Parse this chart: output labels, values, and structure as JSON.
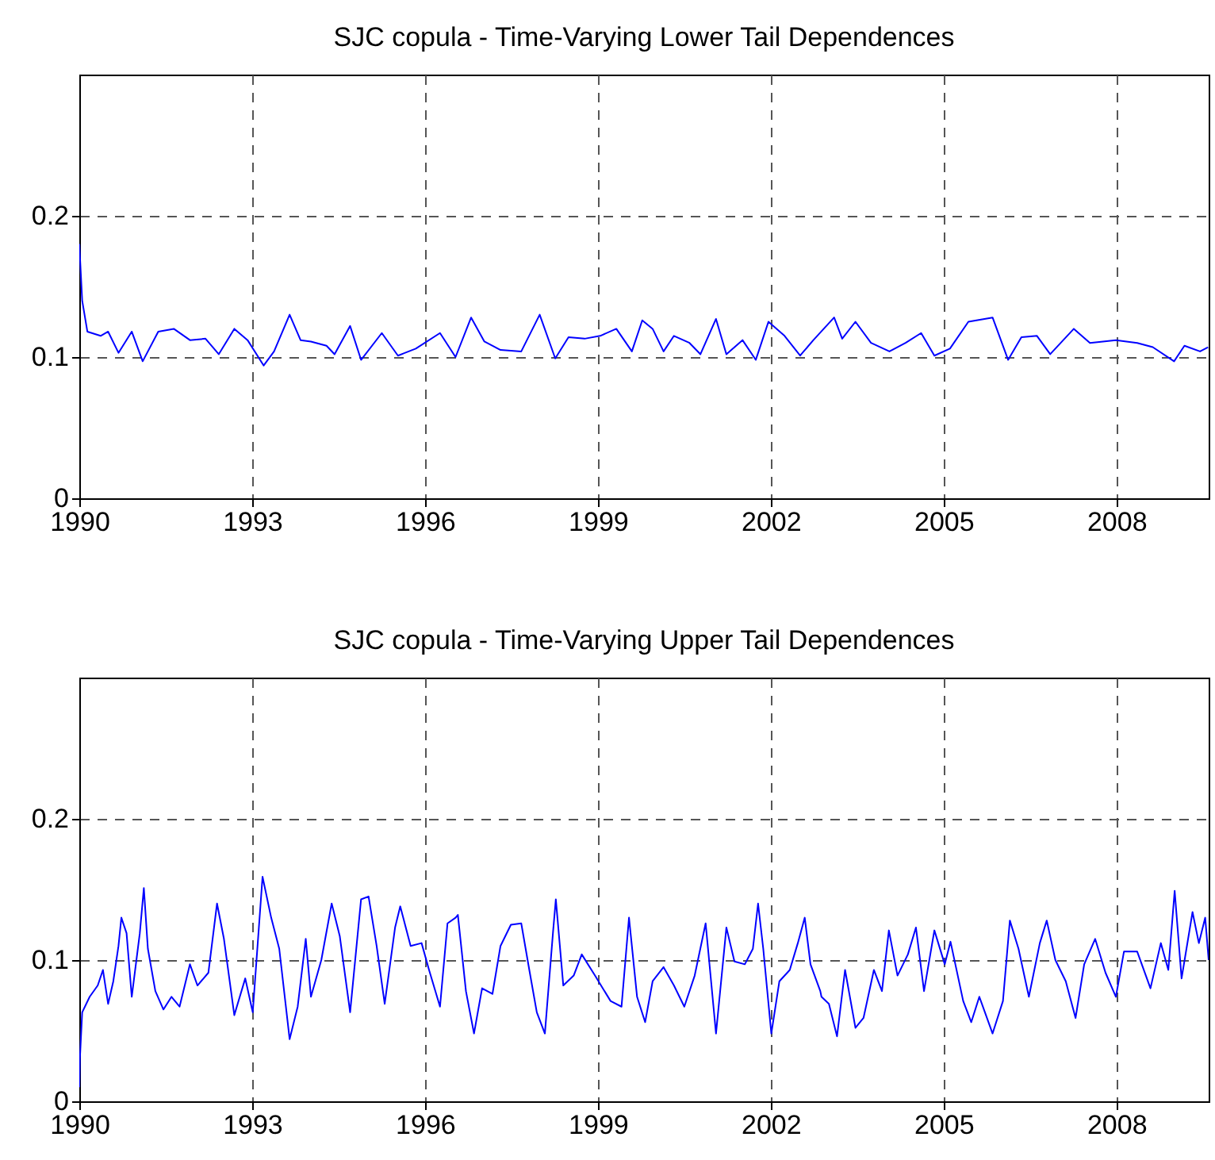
{
  "chart_data": [
    {
      "type": "line",
      "title": "SJC copula - Time-Varying Lower Tail Dependences",
      "xlim": [
        1990,
        2009.6
      ],
      "xticks": [
        1990,
        1993,
        1996,
        1999,
        2002,
        2005,
        2008
      ],
      "ylim": [
        0,
        0.3
      ],
      "yticks": [
        0,
        0.1,
        0.2
      ],
      "grid": true,
      "series": [
        {
          "color": "#0000ff",
          "x": [
            1990.0,
            1990.05,
            1990.14,
            1990.37,
            1990.5,
            1990.68,
            1990.91,
            1991.1,
            1991.37,
            1991.64,
            1991.92,
            1992.19,
            1992.42,
            1992.69,
            1992.92,
            1993.2,
            1993.38,
            1993.65,
            1993.84,
            1994.02,
            1994.29,
            1994.43,
            1994.7,
            1994.89,
            1995.25,
            1995.53,
            1995.84,
            1996.26,
            1996.53,
            1996.8,
            1997.03,
            1997.31,
            1997.67,
            1997.99,
            1998.26,
            1998.49,
            1998.77,
            1999.04,
            1999.32,
            1999.59,
            1999.77,
            1999.95,
            2000.14,
            2000.32,
            2000.59,
            2000.78,
            2001.05,
            2001.23,
            2001.51,
            2001.74,
            2001.96,
            2002.24,
            2002.51,
            2002.74,
            2003.1,
            2003.24,
            2003.47,
            2003.74,
            2004.06,
            2004.34,
            2004.61,
            2004.84,
            2005.11,
            2005.43,
            2005.85,
            2006.12,
            2006.35,
            2006.62,
            2006.85,
            2007.26,
            2007.54,
            2007.99,
            2008.36,
            2008.63,
            2009.0,
            2009.18,
            2009.45,
            2009.59
          ],
          "values": [
            0.18,
            0.14,
            0.118,
            0.115,
            0.118,
            0.103,
            0.118,
            0.097,
            0.118,
            0.12,
            0.112,
            0.113,
            0.102,
            0.12,
            0.112,
            0.094,
            0.104,
            0.13,
            0.112,
            0.111,
            0.108,
            0.102,
            0.122,
            0.098,
            0.117,
            0.101,
            0.106,
            0.117,
            0.1,
            0.128,
            0.111,
            0.105,
            0.104,
            0.13,
            0.099,
            0.114,
            0.113,
            0.115,
            0.12,
            0.104,
            0.126,
            0.12,
            0.104,
            0.115,
            0.11,
            0.102,
            0.127,
            0.102,
            0.112,
            0.098,
            0.125,
            0.115,
            0.101,
            0.112,
            0.128,
            0.113,
            0.125,
            0.11,
            0.104,
            0.11,
            0.117,
            0.101,
            0.106,
            0.125,
            0.128,
            0.098,
            0.114,
            0.115,
            0.102,
            0.12,
            0.11,
            0.112,
            0.11,
            0.107,
            0.097,
            0.108,
            0.104,
            0.107
          ]
        }
      ]
    },
    {
      "type": "line",
      "title": "SJC copula - Time-Varying Upper Tail Dependences",
      "xlim": [
        1990,
        2009.6
      ],
      "xticks": [
        1990,
        1993,
        1996,
        1999,
        2002,
        2005,
        2008
      ],
      "ylim": [
        0,
        0.3
      ],
      "yticks": [
        0,
        0.1,
        0.2
      ],
      "grid": true,
      "series": [
        {
          "color": "#0000ff",
          "x": [
            1990.0,
            1990.01,
            1990.05,
            1990.18,
            1990.32,
            1990.41,
            1990.5,
            1990.59,
            1990.68,
            1990.73,
            1990.82,
            1990.91,
            1991.05,
            1991.12,
            1991.19,
            1991.32,
            1991.46,
            1991.6,
            1991.74,
            1991.92,
            1992.05,
            1992.24,
            1992.39,
            1992.51,
            1992.69,
            1992.88,
            1993.01,
            1993.18,
            1993.33,
            1993.47,
            1993.65,
            1993.79,
            1993.93,
            1994.02,
            1994.2,
            1994.38,
            1994.52,
            1994.7,
            1994.89,
            1995.02,
            1995.16,
            1995.3,
            1995.48,
            1995.57,
            1995.75,
            1995.94,
            1996.07,
            1996.26,
            1996.39,
            1996.53,
            1996.57,
            1996.71,
            1996.85,
            1996.99,
            1997.17,
            1997.31,
            1997.49,
            1997.67,
            1997.81,
            1997.94,
            1998.08,
            1998.22,
            1998.27,
            1998.4,
            1998.58,
            1998.72,
            1998.95,
            1999.22,
            1999.41,
            1999.54,
            1999.68,
            1999.82,
            1999.95,
            2000.14,
            2000.32,
            2000.5,
            2000.68,
            2000.87,
            2001.05,
            2001.23,
            2001.37,
            2001.55,
            2001.69,
            2001.78,
            2001.87,
            2002.01,
            2002.15,
            2002.33,
            2002.47,
            2002.59,
            2002.69,
            2002.86,
            2002.88,
            2003.01,
            2003.15,
            2003.29,
            2003.47,
            2003.61,
            2003.79,
            2003.93,
            2004.05,
            2004.2,
            2004.38,
            2004.52,
            2004.66,
            2004.84,
            2005.02,
            2005.12,
            2005.34,
            2005.48,
            2005.62,
            2005.85,
            2006.03,
            2006.15,
            2006.3,
            2006.48,
            2006.67,
            2006.79,
            2006.94,
            2007.12,
            2007.29,
            2007.44,
            2007.63,
            2007.81,
            2007.99,
            2008.13,
            2008.36,
            2008.59,
            2008.77,
            2008.9,
            2009.01,
            2009.13,
            2009.32,
            2009.43,
            2009.54,
            2009.6
          ],
          "values": [
            0.01,
            0.03,
            0.063,
            0.074,
            0.082,
            0.093,
            0.069,
            0.085,
            0.11,
            0.13,
            0.119,
            0.074,
            0.119,
            0.151,
            0.108,
            0.078,
            0.065,
            0.074,
            0.067,
            0.097,
            0.082,
            0.091,
            0.14,
            0.115,
            0.061,
            0.087,
            0.063,
            0.159,
            0.13,
            0.108,
            0.044,
            0.067,
            0.115,
            0.074,
            0.1,
            0.14,
            0.117,
            0.063,
            0.143,
            0.145,
            0.11,
            0.069,
            0.123,
            0.138,
            0.11,
            0.112,
            0.093,
            0.067,
            0.126,
            0.13,
            0.132,
            0.078,
            0.048,
            0.08,
            0.076,
            0.11,
            0.125,
            0.126,
            0.093,
            0.063,
            0.048,
            0.119,
            0.143,
            0.082,
            0.089,
            0.104,
            0.089,
            0.071,
            0.067,
            0.13,
            0.074,
            0.056,
            0.085,
            0.095,
            0.082,
            0.067,
            0.089,
            0.126,
            0.048,
            0.123,
            0.099,
            0.097,
            0.108,
            0.14,
            0.108,
            0.048,
            0.085,
            0.093,
            0.112,
            0.13,
            0.097,
            0.078,
            0.074,
            0.069,
            0.046,
            0.093,
            0.052,
            0.059,
            0.093,
            0.078,
            0.121,
            0.089,
            0.104,
            0.123,
            0.078,
            0.121,
            0.097,
            0.113,
            0.071,
            0.056,
            0.074,
            0.048,
            0.071,
            0.128,
            0.108,
            0.074,
            0.112,
            0.128,
            0.1,
            0.085,
            0.059,
            0.097,
            0.115,
            0.091,
            0.074,
            0.106,
            0.106,
            0.08,
            0.112,
            0.093,
            0.149,
            0.087,
            0.134,
            0.112,
            0.13,
            0.1
          ]
        }
      ]
    }
  ]
}
